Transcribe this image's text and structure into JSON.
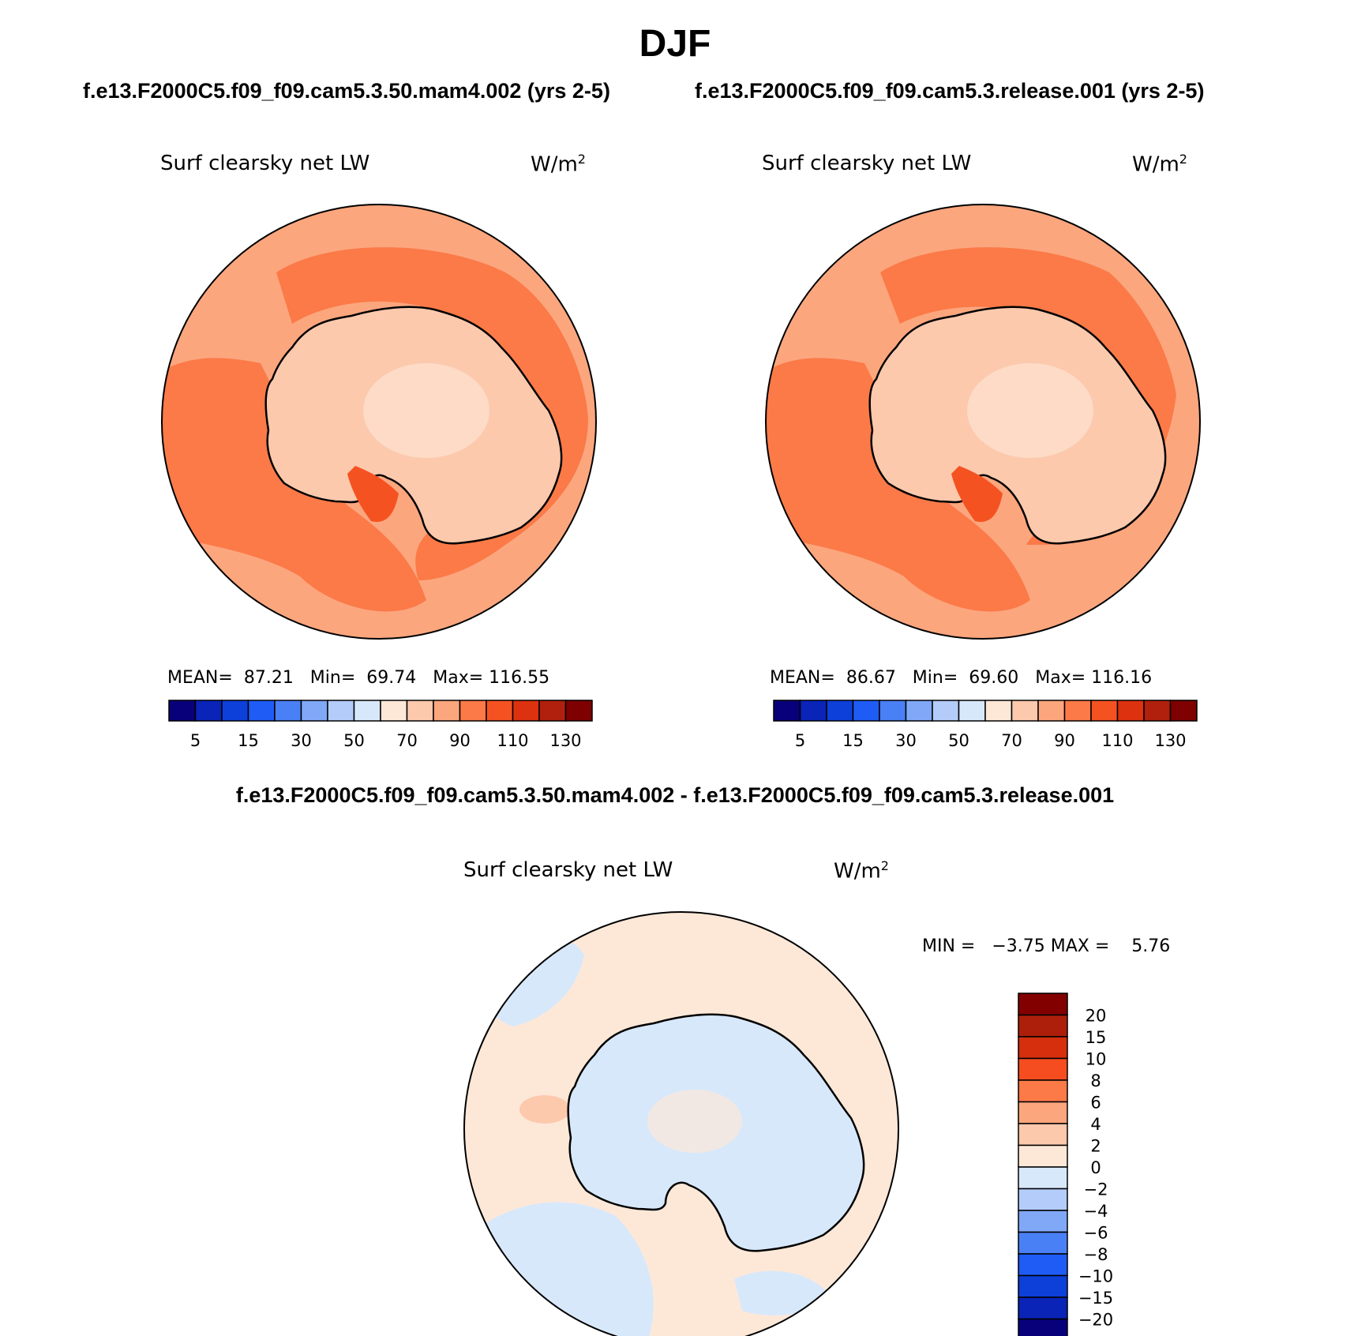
{
  "title": "DJF",
  "case_left": "f.e13.F2000C5.f09_f09.cam5.3.50.mam4.002 (yrs 2-5)",
  "case_right": "f.e13.F2000C5.f09_f09.cam5.3.release.001 (yrs 2-5)",
  "diff_title": "f.e13.F2000C5.f09_f09.cam5.3.50.mam4.002 - f.e13.F2000C5.f09_f09.cam5.3.release.001",
  "panels": [
    {
      "variable": "Surf clearsky net LW",
      "units": "W/m",
      "units_exp": "2",
      "mean_label": "MEAN=",
      "mean": "87.21",
      "min_label": "Min=",
      "min": "69.74",
      "max_label": "Max=",
      "max": "116.55"
    },
    {
      "variable": "Surf clearsky net LW",
      "units": "W/m",
      "units_exp": "2",
      "mean_label": "MEAN=",
      "mean": "86.67",
      "min_label": "Min=",
      "min": "69.60",
      "max_label": "Max=",
      "max": "116.16"
    },
    {
      "variable": "Surf clearsky net LW",
      "units": "W/m",
      "units_exp": "2",
      "min_label": "MIN =",
      "min": "−3.75",
      "max_label": "MAX =",
      "max": "5.76"
    }
  ],
  "colorbar_abs": {
    "colors": [
      "#08007a",
      "#0a24b8",
      "#0d3fd9",
      "#1f5cf5",
      "#4a80f5",
      "#80a8f7",
      "#b3ccf9",
      "#d8e8fb",
      "#fde8d8",
      "#fcc9ad",
      "#fca67e",
      "#fb7a48",
      "#f55222",
      "#dc3210",
      "#b0200c",
      "#7e0000"
    ],
    "tick_labels": [
      "5",
      "15",
      "30",
      "50",
      "70",
      "90",
      "110",
      "130"
    ]
  },
  "colorbar_diff": {
    "colors": [
      "#820000",
      "#ad1f0b",
      "#d52f0e",
      "#f54d1f",
      "#fb7a48",
      "#fca67e",
      "#fcc9ad",
      "#fde8d8",
      "#d8e8fb",
      "#b3ccf9",
      "#80a8f7",
      "#4a80f5",
      "#1f5cf5",
      "#0d3fd9",
      "#0a24b8",
      "#08007a"
    ],
    "tick_labels": [
      "20",
      "15",
      "10",
      "8",
      "6",
      "4",
      "2",
      "0",
      "−2",
      "−4",
      "−6",
      "−8",
      "−10",
      "−15",
      "−20"
    ]
  }
}
